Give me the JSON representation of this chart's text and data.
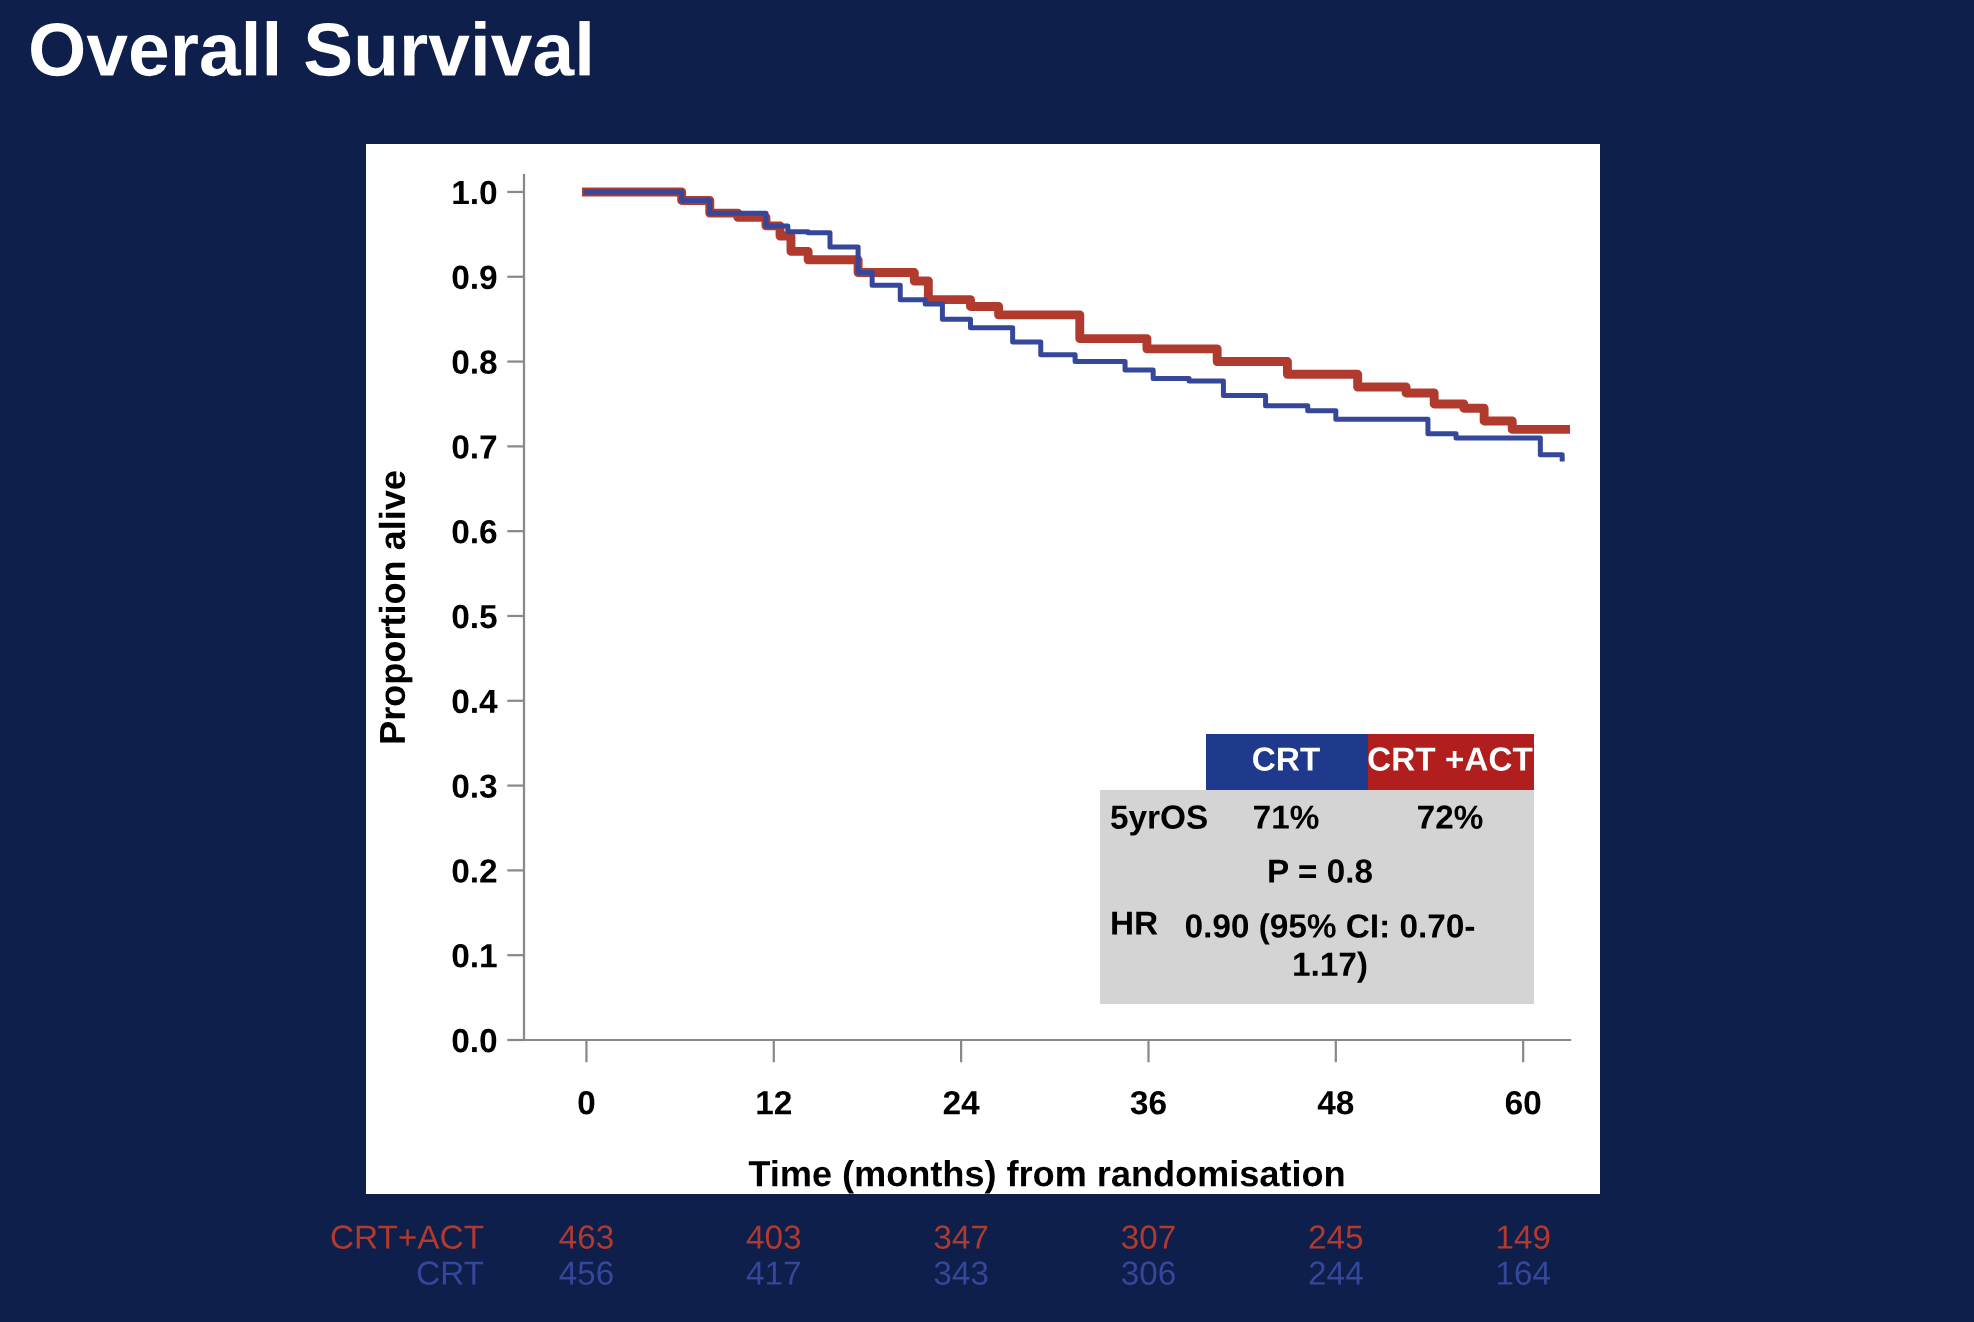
{
  "chart_data": {
    "type": "step",
    "title": "Overall Survival",
    "xlabel": "Time (months) from randomisation",
    "ylabel": "Proportion alive",
    "xlim": [
      -4,
      63
    ],
    "xticks": [
      0,
      12,
      24,
      36,
      48,
      60
    ],
    "ylim": [
      0,
      1.02
    ],
    "yticks": [
      {
        "value": 0,
        "label": "0.0"
      },
      {
        "value": 0.1,
        "label": "0.1"
      },
      {
        "value": 0.2,
        "label": "0.2"
      },
      {
        "value": 0.3,
        "label": "0.3"
      },
      {
        "value": 0.4,
        "label": "0.4"
      },
      {
        "value": 0.5,
        "label": "0.5"
      },
      {
        "value": 0.6,
        "label": "0.6"
      },
      {
        "value": 0.7,
        "label": "0.7"
      },
      {
        "value": 0.8,
        "label": "0.8"
      },
      {
        "value": 0.9,
        "label": "0.9"
      },
      {
        "value": 1.0,
        "label": "1.0"
      }
    ],
    "grid": false,
    "legend": false,
    "marker": "none",
    "line_style": "solid",
    "series": [
      {
        "name": "CRT+ACT",
        "color": "#b03a2e",
        "x": [
          0,
          3.4,
          6.1,
          7.9,
          9.7,
          11.5,
          12.4,
          13.1,
          14.2,
          17.4,
          21,
          21.9,
          24.6,
          26.4,
          30.4,
          31.6,
          35.9,
          40.4,
          44.9,
          49.4,
          52.5,
          54.3,
          56.2,
          57.5,
          59.3,
          63
        ],
        "values": [
          1.0,
          1.0,
          0.99,
          0.975,
          0.97,
          0.96,
          0.948,
          0.93,
          0.92,
          0.905,
          0.895,
          0.873,
          0.865,
          0.855,
          0.855,
          0.827,
          0.815,
          0.8,
          0.785,
          0.77,
          0.763,
          0.75,
          0.745,
          0.73,
          0.72,
          0.72
        ]
      },
      {
        "name": "CRT",
        "color": "#34479a",
        "x": [
          0,
          3.4,
          6.1,
          7.9,
          11.5,
          12.9,
          14.2,
          15.6,
          17.4,
          18.3,
          20.1,
          21.7,
          22.8,
          24.6,
          27.3,
          29.1,
          31.3,
          34.5,
          36.3,
          38.6,
          40.8,
          43.5,
          46.2,
          48,
          52.5,
          53.9,
          55.7,
          59.8,
          61.1,
          62.5
        ],
        "values": [
          1.0,
          1.0,
          0.99,
          0.975,
          0.96,
          0.953,
          0.952,
          0.935,
          0.905,
          0.89,
          0.873,
          0.868,
          0.85,
          0.84,
          0.823,
          0.808,
          0.8,
          0.79,
          0.78,
          0.777,
          0.76,
          0.748,
          0.742,
          0.732,
          0.732,
          0.715,
          0.71,
          0.71,
          0.69,
          0.685
        ]
      }
    ],
    "annotations": [
      "CRT",
      "CRT +ACT",
      "5yrOS",
      "71%",
      "72%",
      "P = 0.8",
      "HR",
      "0.90 (95% CI: 0.70-\n1.17)",
      "463",
      "403",
      "347",
      "307",
      "245",
      "149",
      "456",
      "417",
      "343",
      "306",
      "244",
      "164"
    ]
  }
}
